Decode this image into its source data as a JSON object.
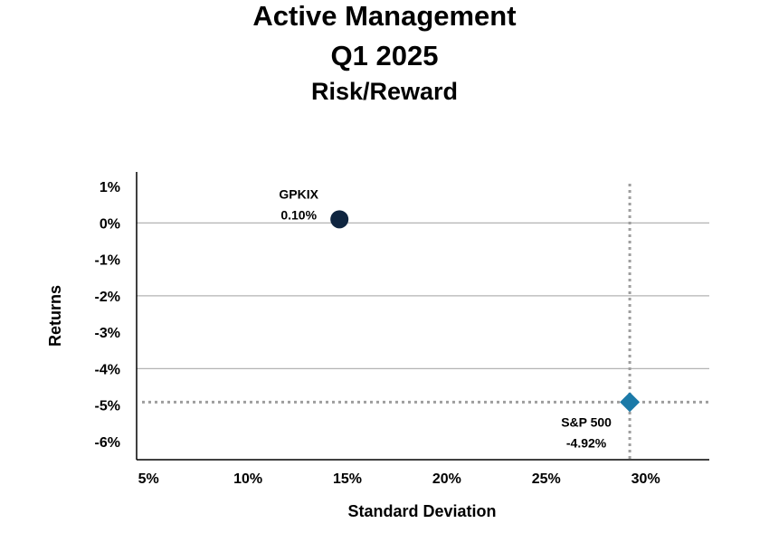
{
  "chart_data": {
    "type": "scatter",
    "title": "Active Management",
    "subtitle": "Q1 2025",
    "subtitle2": "Risk/Reward",
    "xlabel": "Standard Deviation",
    "ylabel": "Returns",
    "xlim": [
      4.4,
      33.2
    ],
    "ylim": [
      -6.5,
      1.4
    ],
    "x_ticks": [
      5,
      10,
      15,
      20,
      25,
      30
    ],
    "x_tick_labels": [
      "5%",
      "10%",
      "15%",
      "20%",
      "25%",
      "30%"
    ],
    "y_ticks": [
      1,
      0,
      -1,
      -2,
      -3,
      -4,
      -5,
      -6
    ],
    "y_tick_labels": [
      "1%",
      "0%",
      "-1%",
      "-2%",
      "-3%",
      "-4%",
      "-5%",
      "-6%"
    ],
    "y_gridlines": [
      0,
      -2,
      -4
    ],
    "points": [
      {
        "name": "GPKIX",
        "label": "0.10%",
        "x": 14.6,
        "y": 0.1,
        "marker": "circle",
        "color": "#0f2540",
        "label_side": "upper-left"
      },
      {
        "name": "S&P 500",
        "label": "-4.92%",
        "x": 29.2,
        "y": -4.92,
        "marker": "diamond",
        "color": "#1b7aa8",
        "label_side": "lower-left",
        "reference_lines": true
      }
    ]
  }
}
